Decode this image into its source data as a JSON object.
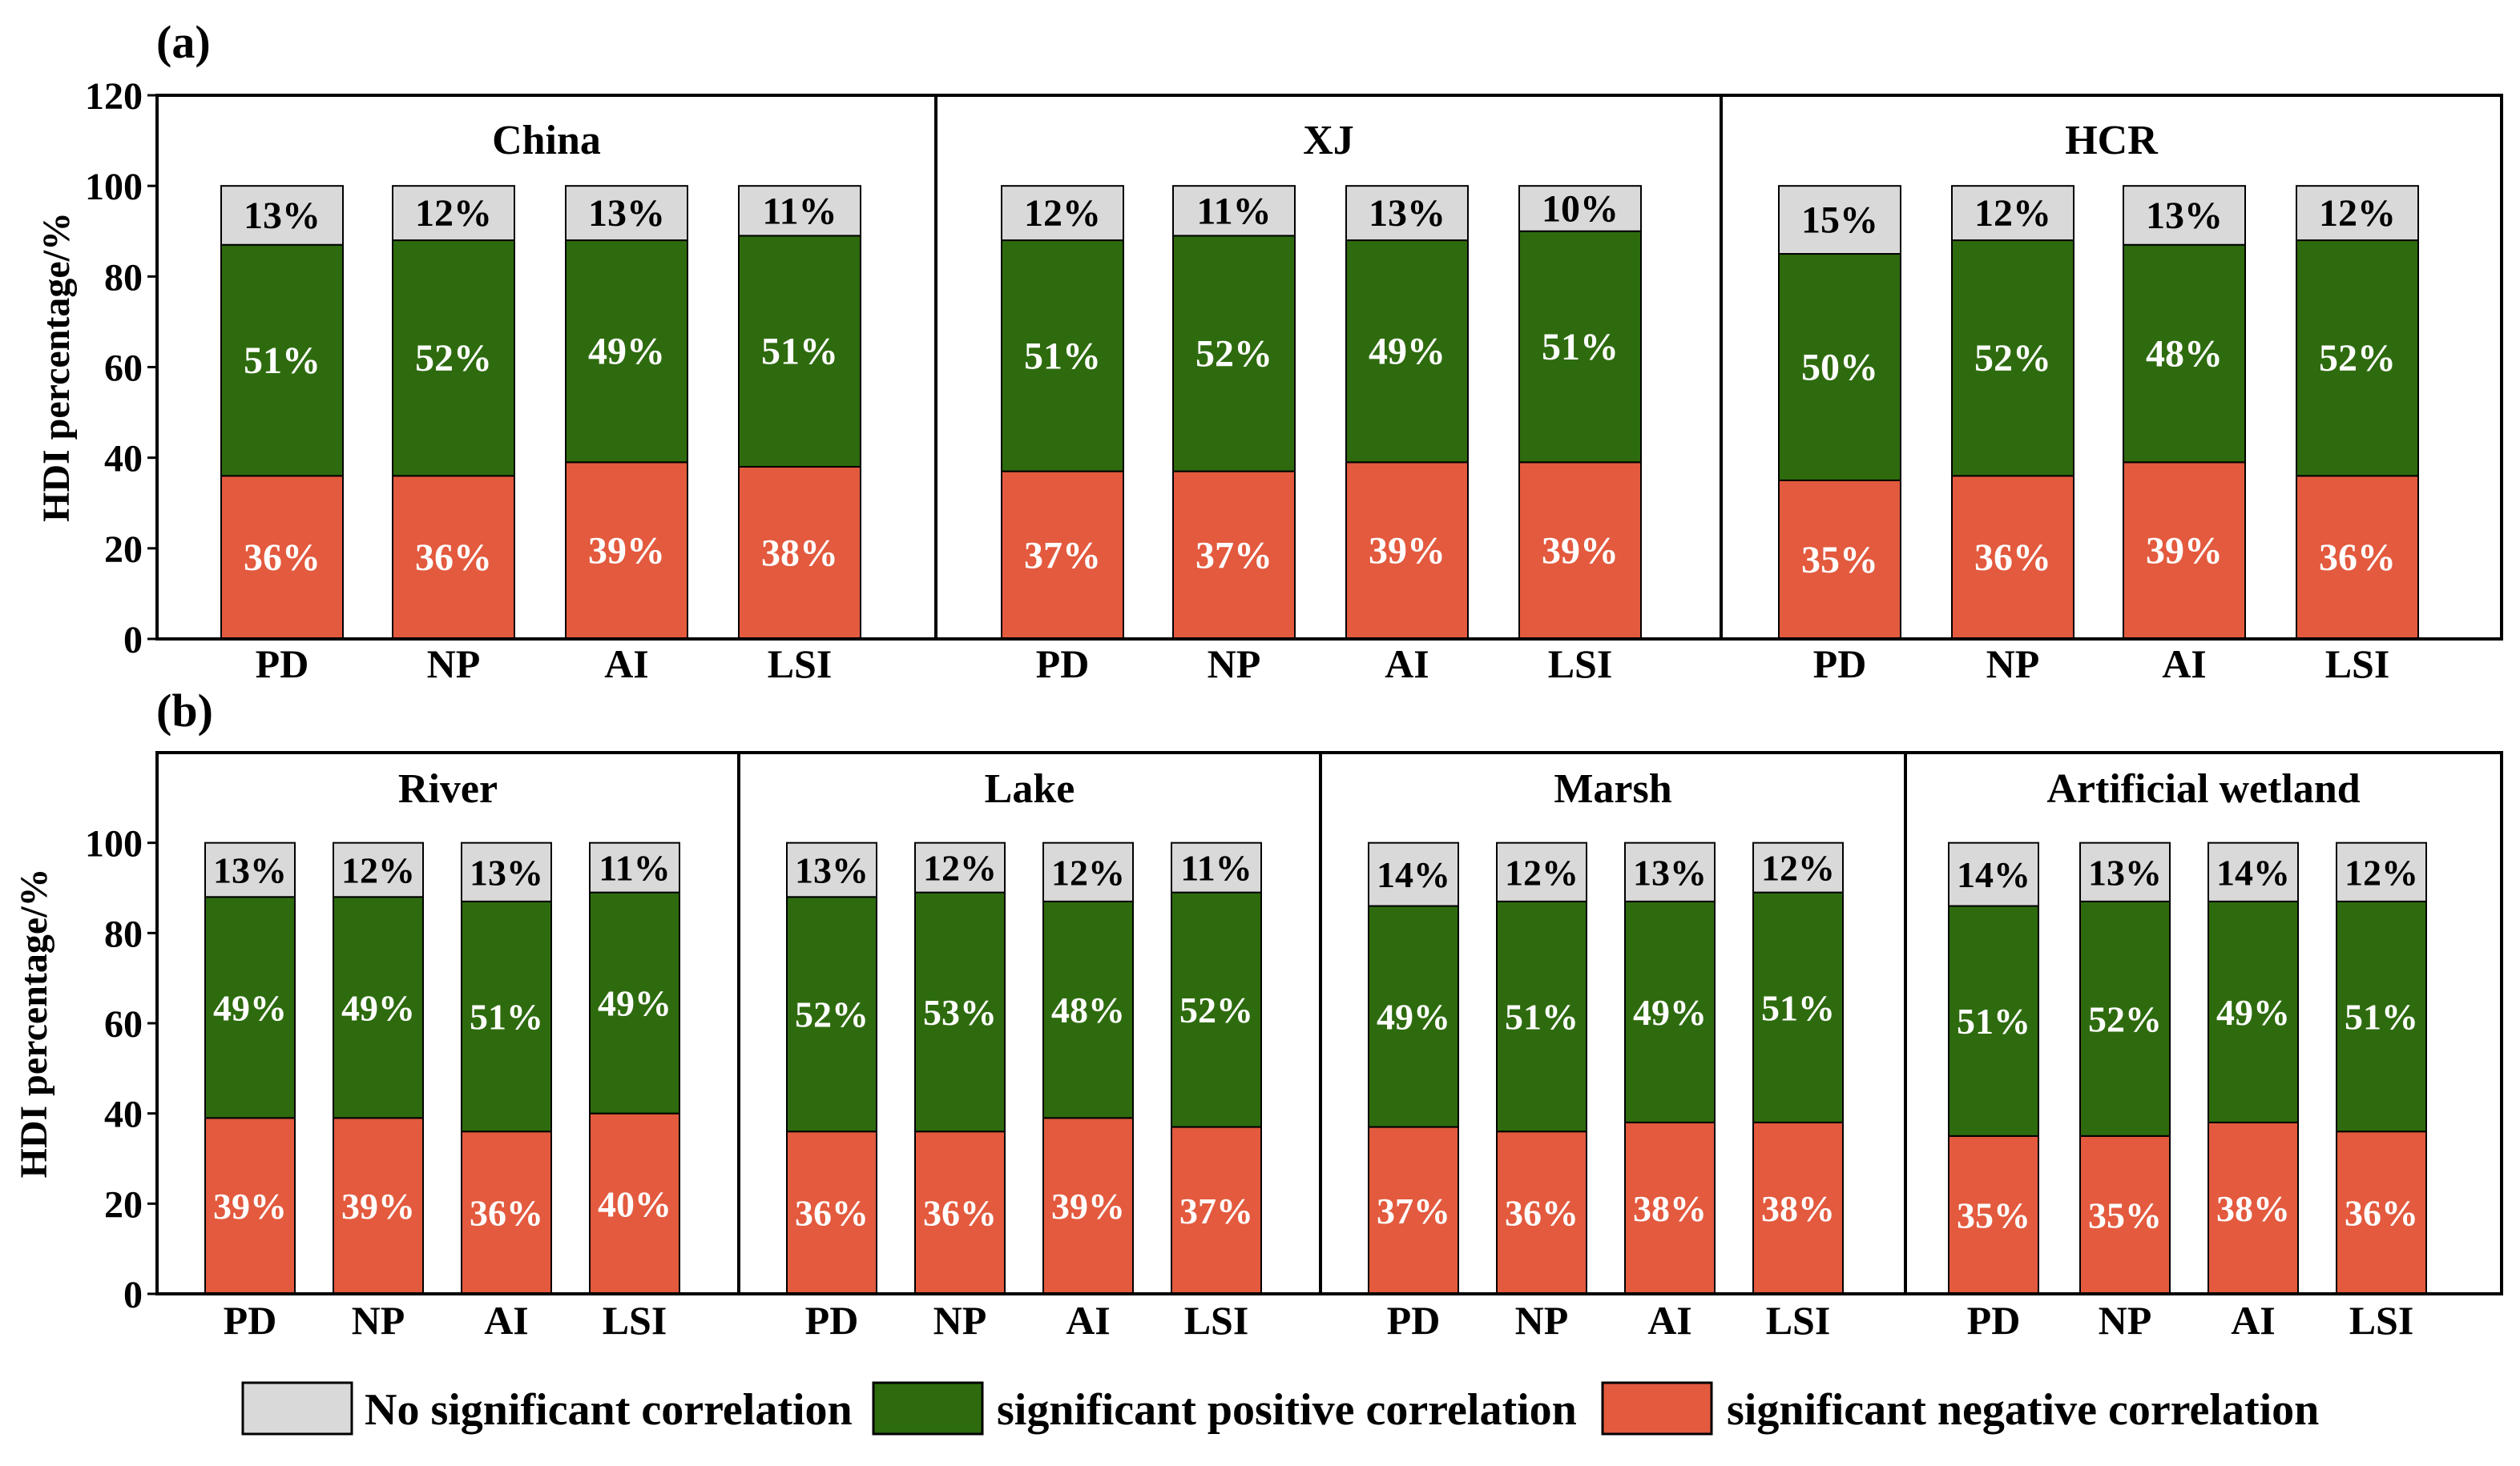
{
  "colors": {
    "none": "#d9d9d9",
    "positive": "#2e6b0e",
    "negative": "#e35a3e",
    "axis": "#000000"
  },
  "chart_data": [
    {
      "type": "bar",
      "stacked": true,
      "panel_label": "(a)",
      "ylabel": "HDI percentage/%",
      "ylim": [
        0,
        120
      ],
      "yticks": [
        "0",
        "20",
        "40",
        "60",
        "80",
        "100",
        "120"
      ],
      "groups": [
        {
          "title": "China",
          "categories": [
            "PD",
            "NP",
            "AI",
            "LSI"
          ],
          "negative": [
            36,
            36,
            39,
            38
          ],
          "positive": [
            51,
            52,
            49,
            51
          ],
          "none": [
            13,
            12,
            13,
            11
          ],
          "negative_labels": [
            "36%",
            "36%",
            "39%",
            "38%"
          ],
          "positive_labels": [
            "51%",
            "52%",
            "49%",
            "51%"
          ],
          "none_labels": [
            "13%",
            "12%",
            "13%",
            "11%"
          ]
        },
        {
          "title": "XJ",
          "categories": [
            "PD",
            "NP",
            "AI",
            "LSI"
          ],
          "negative": [
            37,
            37,
            39,
            39
          ],
          "positive": [
            51,
            52,
            49,
            51
          ],
          "none": [
            12,
            11,
            13,
            10
          ],
          "negative_labels": [
            "37%",
            "37%",
            "39%",
            "39%"
          ],
          "positive_labels": [
            "51%",
            "52%",
            "49%",
            "51%"
          ],
          "none_labels": [
            "12%",
            "11%",
            "13%",
            "10%"
          ]
        },
        {
          "title": "HCR",
          "categories": [
            "PD",
            "NP",
            "AI",
            "LSI"
          ],
          "negative": [
            35,
            36,
            39,
            36
          ],
          "positive": [
            50,
            52,
            48,
            52
          ],
          "none": [
            15,
            12,
            13,
            12
          ],
          "negative_labels": [
            "35%",
            "36%",
            "39%",
            "36%"
          ],
          "positive_labels": [
            "50%",
            "52%",
            "48%",
            "52%"
          ],
          "none_labels": [
            "15%",
            "12%",
            "13%",
            "12%"
          ]
        }
      ]
    },
    {
      "type": "bar",
      "stacked": true,
      "panel_label": "(b)",
      "ylabel": "HDI percentage/%",
      "ylim": [
        0,
        120
      ],
      "yticks": [
        "0",
        "20",
        "40",
        "60",
        "80",
        "100"
      ],
      "groups": [
        {
          "title": "River",
          "categories": [
            "PD",
            "NP",
            "AI",
            "LSI"
          ],
          "negative": [
            39,
            39,
            36,
            40
          ],
          "positive": [
            49,
            49,
            51,
            49
          ],
          "none": [
            13,
            12,
            13,
            11
          ],
          "negative_labels": [
            "39%",
            "39%",
            "36%",
            "40%"
          ],
          "positive_labels": [
            "49%",
            "49%",
            "51%",
            "49%"
          ],
          "none_labels": [
            "13%",
            "12%",
            "13%",
            "11%"
          ]
        },
        {
          "title": "Lake",
          "categories": [
            "PD",
            "NP",
            "AI",
            "LSI"
          ],
          "negative": [
            36,
            36,
            39,
            37
          ],
          "positive": [
            52,
            53,
            48,
            52
          ],
          "none": [
            13,
            12,
            12,
            11
          ],
          "negative_labels": [
            "36%",
            "36%",
            "39%",
            "37%"
          ],
          "positive_labels": [
            "52%",
            "53%",
            "48%",
            "52%"
          ],
          "none_labels": [
            "13%",
            "12%",
            "12%",
            "11%"
          ]
        },
        {
          "title": "Marsh",
          "categories": [
            "PD",
            "NP",
            "AI",
            "LSI"
          ],
          "negative": [
            37,
            36,
            38,
            38
          ],
          "positive": [
            49,
            51,
            49,
            51
          ],
          "none": [
            14,
            12,
            13,
            12
          ],
          "negative_labels": [
            "37%",
            "36%",
            "38%",
            "38%"
          ],
          "positive_labels": [
            "49%",
            "51%",
            "49%",
            "51%"
          ],
          "none_labels": [
            "14%",
            "12%",
            "13%",
            "12%"
          ]
        },
        {
          "title": "Artificial wetland",
          "categories": [
            "PD",
            "NP",
            "AI",
            "LSI"
          ],
          "negative": [
            35,
            35,
            38,
            36
          ],
          "positive": [
            51,
            52,
            49,
            51
          ],
          "none": [
            14,
            13,
            14,
            12
          ],
          "negative_labels": [
            "35%",
            "35%",
            "38%",
            "36%"
          ],
          "positive_labels": [
            "51%",
            "52%",
            "49%",
            "51%"
          ],
          "none_labels": [
            "14%",
            "13%",
            "14%",
            "12%"
          ]
        }
      ]
    }
  ],
  "legend": [
    {
      "key": "none",
      "label": "No significant correlation"
    },
    {
      "key": "positive",
      "label": "significant positive correlation"
    },
    {
      "key": "negative",
      "label": "significant negative correlation"
    }
  ]
}
